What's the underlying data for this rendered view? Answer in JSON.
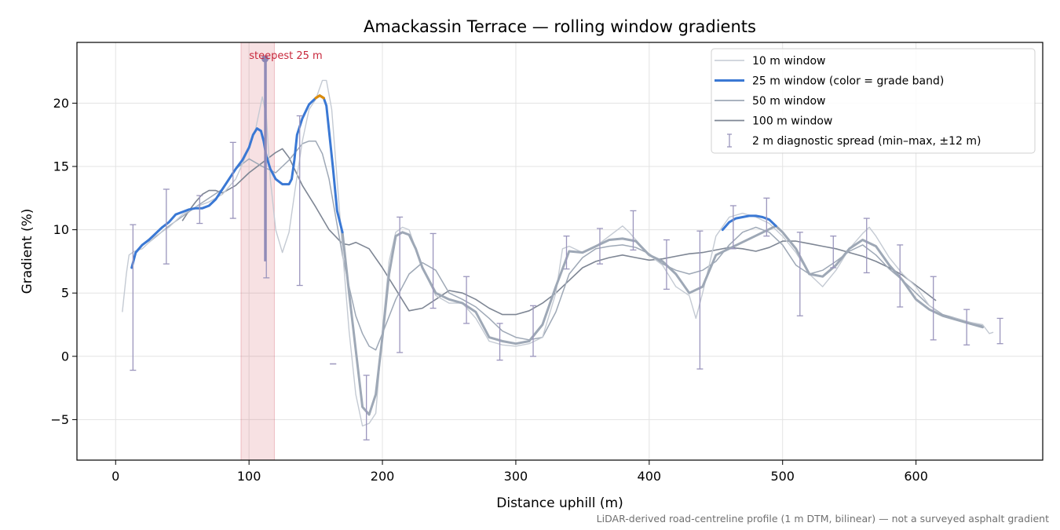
{
  "chart_data": {
    "type": "line",
    "title": "Amackassin Terrace — rolling window gradients",
    "xlabel": "Distance uphill (m)",
    "ylabel": "Gradient (%)",
    "xlim": [
      -29,
      695
    ],
    "ylim": [
      -8.2,
      24.8
    ],
    "xticks": [
      0,
      100,
      200,
      300,
      400,
      500,
      600
    ],
    "yticks": [
      -5,
      0,
      5,
      10,
      15,
      20
    ],
    "grid": true,
    "legend_position": "top-right",
    "footnote": "LiDAR-derived road-centreline profile (1 m DTM, bilinear) — not a surveyed asphalt gradient",
    "highlight": {
      "label": "steepest 25 m",
      "x_start": 94,
      "x_end": 119,
      "peak_x": 112,
      "peak_y": 23.5,
      "color": "#c8283c"
    },
    "series": [
      {
        "name": "10 m window",
        "color": "#c4cad3",
        "x": [
          5,
          8,
          10,
          14,
          20,
          30,
          40,
          50,
          60,
          70,
          80,
          90,
          95,
          100,
          105,
          110,
          113,
          116,
          120,
          125,
          130,
          135,
          140,
          145,
          150,
          155,
          158,
          162,
          166,
          170,
          175,
          180,
          185,
          190,
          195,
          200,
          205,
          210,
          215,
          220,
          225,
          230,
          240,
          250,
          260,
          270,
          280,
          290,
          300,
          310,
          320,
          330,
          335,
          340,
          350,
          360,
          370,
          380,
          385,
          390,
          400,
          410,
          420,
          430,
          435,
          440,
          445,
          450,
          460,
          470,
          480,
          490,
          500,
          510,
          520,
          530,
          540,
          550,
          560,
          565,
          570,
          580,
          590,
          600,
          610,
          620,
          630,
          640,
          650,
          655,
          658
        ],
        "y": [
          3.5,
          6.5,
          8,
          8.3,
          8.5,
          9.5,
          10.2,
          11.2,
          11.8,
          12.2,
          12.8,
          14,
          15.2,
          16.5,
          18,
          20.5,
          19,
          14,
          10,
          8.2,
          9.8,
          13.5,
          17,
          19.5,
          20.3,
          21.8,
          21.8,
          19.5,
          14,
          8.5,
          2,
          -3,
          -5.5,
          -5.3,
          -4.5,
          2,
          7.5,
          9.8,
          10.2,
          10,
          8.5,
          7,
          4.8,
          4.2,
          4.2,
          3,
          1.2,
          0.9,
          0.8,
          1,
          1.5,
          5,
          8.5,
          8.7,
          8.2,
          8.7,
          9.5,
          10.3,
          9.8,
          9.2,
          8,
          7.2,
          5.5,
          4.8,
          3,
          5,
          7.2,
          9.5,
          11,
          11.3,
          11,
          10.5,
          9.5,
          8.2,
          6.5,
          5.5,
          6.8,
          8.5,
          9.7,
          10.2,
          9.5,
          7.8,
          6.5,
          5.5,
          4,
          3.2,
          3,
          2.7,
          2.5,
          1.8,
          1.9
        ]
      },
      {
        "name": "25 m window (color = grade band)",
        "color": "#3a78d4",
        "band_color": "#dd8c0a",
        "band_threshold": 20,
        "segments": [
          {
            "x": [
              12,
              15,
              20,
              25,
              30,
              35,
              40,
              45,
              50,
              55,
              60,
              65,
              70,
              75,
              80,
              85,
              90,
              95,
              100,
              103,
              106,
              109,
              111,
              113,
              116,
              120,
              125,
              130,
              132,
              134,
              136,
              140,
              145,
              150,
              153,
              156,
              158,
              160,
              163,
              166,
              170
            ],
            "y": [
              7,
              8.2,
              8.8,
              9.2,
              9.7,
              10.2,
              10.6,
              11.2,
              11.4,
              11.6,
              11.7,
              11.7,
              11.9,
              12.4,
              13.2,
              14,
              14.8,
              15.5,
              16.5,
              17.5,
              18,
              17.8,
              17,
              15.8,
              14.8,
              14,
              13.6,
              13.6,
              14,
              15.5,
              17.5,
              18.8,
              19.9,
              20.4,
              20.6,
              20.4,
              19.8,
              17.8,
              14.8,
              11.5,
              9.8
            ]
          },
          {
            "x": [
              455,
              460,
              465,
              470,
              475,
              480,
              485,
              490,
              495
            ],
            "y": [
              10,
              10.6,
              10.9,
              11,
              11.1,
              11.1,
              11,
              10.8,
              10.3
            ]
          }
        ],
        "tail": {
          "x": [
            170,
            175,
            180,
            185,
            190,
            195,
            200,
            205,
            210,
            215,
            220,
            225,
            230,
            240,
            250,
            260,
            270,
            280,
            290,
            300,
            310,
            320,
            330,
            340,
            350,
            360,
            370,
            380,
            390,
            400,
            410,
            420,
            430,
            440,
            450,
            495,
            500,
            510,
            520,
            530,
            540,
            550,
            560,
            570,
            580,
            590,
            600,
            610,
            620,
            630,
            640,
            650
          ],
          "y": [
            9.8,
            5,
            0.5,
            -4,
            -4.6,
            -3,
            1.5,
            6.5,
            9.5,
            9.8,
            9.6,
            8.5,
            7,
            5,
            4.5,
            4.2,
            3.5,
            1.5,
            1.2,
            1,
            1.2,
            2.5,
            5.5,
            8.3,
            8.2,
            8.7,
            9.2,
            9.3,
            9.1,
            8,
            7.5,
            6.5,
            5,
            5.5,
            8,
            10.3,
            9.8,
            8.5,
            6.5,
            6.3,
            7.2,
            8.5,
            9.2,
            8.7,
            7.2,
            6,
            4.5,
            3.7,
            3.2,
            2.9,
            2.6,
            2.3
          ]
        }
      },
      {
        "name": "50 m window",
        "color": "#9ea8b6",
        "x": [
          25,
          40,
          60,
          80,
          90,
          100,
          110,
          120,
          130,
          140,
          145,
          150,
          155,
          160,
          165,
          170,
          175,
          180,
          185,
          190,
          195,
          200,
          210,
          220,
          230,
          240,
          250,
          260,
          270,
          280,
          290,
          300,
          310,
          320,
          330,
          340,
          350,
          360,
          370,
          380,
          390,
          400,
          410,
          420,
          430,
          440,
          450,
          460,
          470,
          480,
          490,
          500,
          510,
          520,
          530,
          540,
          550,
          560,
          570,
          580,
          590,
          600,
          610,
          620,
          630,
          640,
          650
        ],
        "y": [
          9,
          10.3,
          11.8,
          13.2,
          14.8,
          15.6,
          15,
          14.5,
          15.5,
          16.8,
          17,
          17,
          16,
          14,
          11,
          8,
          5.5,
          3.2,
          1.8,
          0.8,
          0.5,
          1.8,
          4.5,
          6.5,
          7.4,
          6.8,
          5,
          4.5,
          3.9,
          3,
          2,
          1.5,
          1.3,
          1.5,
          3.5,
          6.5,
          7.8,
          8.5,
          8.7,
          8.8,
          8.6,
          8.1,
          7.3,
          6.8,
          6.5,
          6.8,
          7.5,
          8.8,
          9.8,
          10.2,
          9.8,
          8.8,
          7.2,
          6.5,
          6.8,
          7.5,
          8.3,
          8.8,
          8,
          6.9,
          6,
          5,
          4,
          3.3,
          3,
          2.7,
          2.4
        ]
      },
      {
        "name": "100 m window",
        "color": "#7e8694",
        "x": [
          50,
          55,
          60,
          65,
          70,
          75,
          80,
          90,
          100,
          110,
          120,
          125,
          130,
          140,
          150,
          160,
          170,
          175,
          180,
          190,
          200,
          210,
          220,
          230,
          240,
          250,
          260,
          270,
          280,
          290,
          300,
          310,
          320,
          330,
          340,
          350,
          360,
          370,
          380,
          390,
          400,
          410,
          420,
          430,
          440,
          450,
          460,
          470,
          480,
          490,
          500,
          510,
          520,
          530,
          540,
          550,
          560,
          570,
          580,
          590,
          600,
          610,
          615
        ],
        "y": [
          10.7,
          11.5,
          12.2,
          12.8,
          13.1,
          13.1,
          12.9,
          13.5,
          14.5,
          15.3,
          16.1,
          16.4,
          15.7,
          13.5,
          11.8,
          10,
          8.9,
          8.8,
          9,
          8.5,
          7,
          5.3,
          3.6,
          3.8,
          4.5,
          5.2,
          5,
          4.5,
          3.8,
          3.3,
          3.3,
          3.6,
          4.2,
          5,
          6,
          7,
          7.5,
          7.8,
          8,
          7.8,
          7.6,
          7.7,
          7.9,
          8.1,
          8.2,
          8.4,
          8.6,
          8.5,
          8.3,
          8.6,
          9.1,
          9.1,
          8.9,
          8.7,
          8.5,
          8.2,
          7.9,
          7.5,
          7,
          6.4,
          5.6,
          4.8,
          4.4
        ]
      }
    ],
    "error_bars": {
      "name": "2 m diagnostic spread (min–max, ±12 m)",
      "color": "#9b96bd",
      "points": [
        {
          "x": 13,
          "lo": -1.1,
          "hi": 10.4
        },
        {
          "x": 38,
          "lo": 7.3,
          "hi": 13.2
        },
        {
          "x": 63,
          "lo": 10.5,
          "hi": 12.7
        },
        {
          "x": 88,
          "lo": 10.9,
          "hi": 16.9
        },
        {
          "x": 113,
          "lo": 6.2,
          "hi": 23.5
        },
        {
          "x": 138,
          "lo": 5.6,
          "hi": 19
        },
        {
          "x": 163,
          "lo": -0.6,
          "hi": -0.6
        },
        {
          "x": 188,
          "lo": -6.6,
          "hi": -1.5
        },
        {
          "x": 213,
          "lo": 0.3,
          "hi": 11
        },
        {
          "x": 238,
          "lo": 3.8,
          "hi": 9.7
        },
        {
          "x": 263,
          "lo": 2.6,
          "hi": 6.3
        },
        {
          "x": 288,
          "lo": -0.3,
          "hi": 2.6
        },
        {
          "x": 313,
          "lo": 0,
          "hi": 4
        },
        {
          "x": 338,
          "lo": 6.9,
          "hi": 9.5
        },
        {
          "x": 363,
          "lo": 7.3,
          "hi": 10.1
        },
        {
          "x": 388,
          "lo": 8.4,
          "hi": 11.5
        },
        {
          "x": 413,
          "lo": 5.3,
          "hi": 9.2
        },
        {
          "x": 438,
          "lo": -1,
          "hi": 9.9
        },
        {
          "x": 463,
          "lo": 8.5,
          "hi": 11.9
        },
        {
          "x": 488,
          "lo": 9.5,
          "hi": 12.5
        },
        {
          "x": 513,
          "lo": 3.2,
          "hi": 9.8
        },
        {
          "x": 538,
          "lo": 7,
          "hi": 9.5
        },
        {
          "x": 563,
          "lo": 6.6,
          "hi": 10.9
        },
        {
          "x": 588,
          "lo": 3.9,
          "hi": 8.8
        },
        {
          "x": 613,
          "lo": 1.3,
          "hi": 6.3
        },
        {
          "x": 638,
          "lo": 0.9,
          "hi": 3.7
        },
        {
          "x": 663,
          "lo": 1,
          "hi": 3
        }
      ]
    }
  }
}
